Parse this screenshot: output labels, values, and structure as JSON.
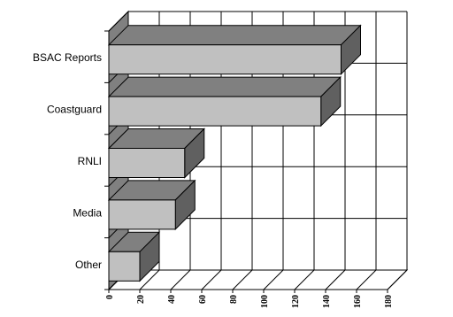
{
  "chart_data": {
    "type": "bar",
    "orientation": "horizontal",
    "three_d": true,
    "categories": [
      "BSAC Reports",
      "Coastguard",
      "RNLI",
      "Media",
      "Other"
    ],
    "values": [
      150,
      137,
      49,
      43,
      20
    ],
    "xlim": [
      0,
      180
    ],
    "x_ticks": [
      "0",
      "20",
      "40",
      "60",
      "80",
      "100",
      "120",
      "140",
      "160",
      "180"
    ],
    "title": "",
    "xlabel": "",
    "ylabel": "",
    "grid": true,
    "legend": "none",
    "colors": {
      "bar_front": "#c0c0c0",
      "bar_top": "#808080",
      "bar_side": "#606060",
      "wall": "#808080",
      "grid": "#000000"
    }
  }
}
